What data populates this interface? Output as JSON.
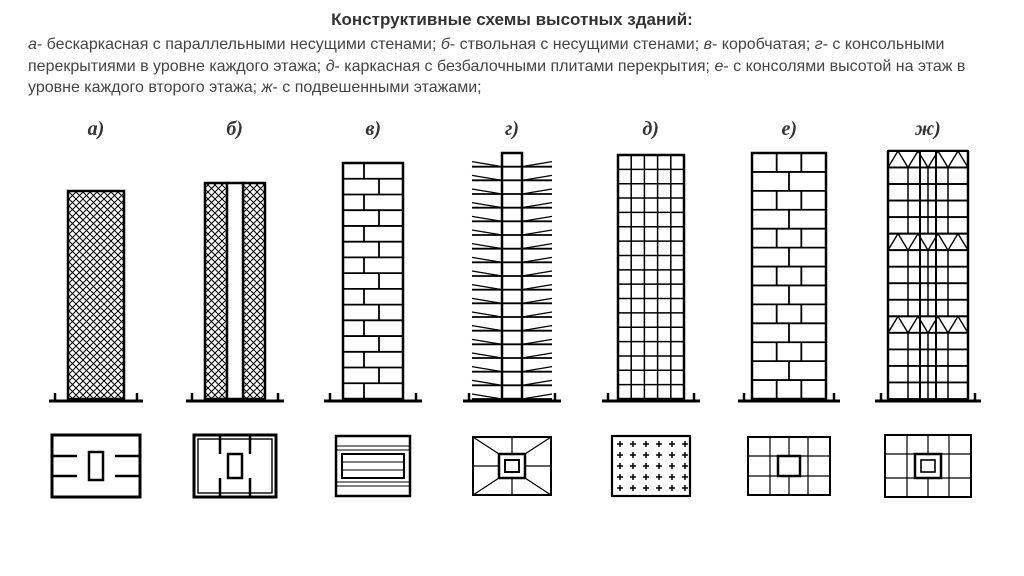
{
  "title": "Конструктивные схемы высотных зданий:",
  "description_parts": {
    "a": "а",
    "a_txt": "- бескаркасная с параллельными несущими стенами; ",
    "b": "б",
    "b_txt": "- ствольная с несущими стенами; ",
    "v": "в",
    "v_txt": "- коробчатая; ",
    "g": "г",
    "g_txt": "- с консольными перекрытиями в уровне каждого этажа; ",
    "d": "д",
    "d_txt": "- каркасная с безбалочными плитами перекрытия; ",
    "e": "е",
    "e_txt": "- с консолями высотой на этаж в уровне каждого второго этажа; ",
    "zh": "ж",
    "zh_txt": "- с подвешенными этажами;"
  },
  "labels": {
    "a": "а)",
    "b": "б)",
    "v": "в)",
    "g": "г)",
    "d": "д)",
    "e": "е)",
    "zh": "ж)"
  },
  "style": {
    "stroke": "#000000",
    "stroke_w": 2.5,
    "thin_w": 1.4,
    "bg": "#ffffff",
    "hatch_spacing": 5,
    "tower_width_narrow": 56,
    "tower_width_wide": 80,
    "tower_height_short": 210,
    "tower_height_tall": 248,
    "floors_brick": 14,
    "floors_frame": 16,
    "plan_w": 90,
    "plan_h": 64
  }
}
